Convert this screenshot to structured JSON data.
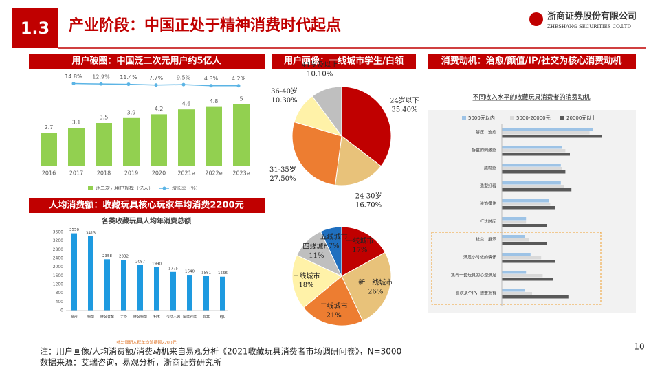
{
  "header": {
    "section": "1.3",
    "title": "产业阶段：中国正处于精神消费时代起点",
    "company": "浙商证券股份有限公司",
    "company_en": "ZHESHANG SECURITIES CO.LTD"
  },
  "panels": [
    "用户破圈：中国泛二次元用户约5亿人",
    "人均消费额：收藏玩具核心玩家年均消费2200元",
    "用户画像：一线城市学生/白领",
    "消费动机：治愈/颜值/IP/社交为核心消费动机"
  ],
  "chart_data": [
    {
      "type": "bar_line",
      "categories": [
        "2016",
        "2017",
        "2018",
        "2019",
        "2020",
        "2021e",
        "2022e",
        "2023e"
      ],
      "series": [
        {
          "name": "泛二次元用户规模（亿人）",
          "color": "#92d050",
          "values": [
            2.7,
            3.1,
            3.5,
            3.9,
            4.2,
            4.6,
            4.8,
            5.0
          ]
        },
        {
          "name": "增长率（%）",
          "color": "#5bb4e5",
          "values": [
            null,
            14.8,
            12.9,
            11.4,
            7.7,
            9.5,
            4.3,
            4.2
          ],
          "value_labels": [
            null,
            "14.8%",
            "12.9%",
            "11.4%",
            "7.7%",
            "9.5%",
            "4.3%",
            "4.2%"
          ]
        }
      ]
    },
    {
      "type": "bar",
      "title": "各类收藏玩具人均年消费总额",
      "categories": [
        "变形",
        "模型",
        "拼装合金",
        "手办",
        "拼装模型",
        "积木",
        "可动人偶",
        "扭蛋转蛋",
        "盲盒",
        "BJD"
      ],
      "values": [
        3550,
        3413,
        2358,
        2332,
        2087,
        1990,
        1775,
        1640,
        1581,
        1556
      ],
      "color": "#1e9ae0",
      "ylim": [
        0,
        3600
      ],
      "yticks": [
        0,
        400,
        800,
        1200,
        1600,
        2000,
        2400,
        2800,
        3200,
        3600
      ],
      "annotation": "参与调研人群年均消费额2200元"
    },
    {
      "type": "pie",
      "categories": [
        "24岁以下",
        "24-30岁",
        "31-35岁",
        "36-40岁",
        "41岁及以上"
      ],
      "values": [
        35.4,
        16.7,
        27.5,
        10.3,
        10.1
      ],
      "value_labels": [
        "35.40%",
        "16.70%",
        "27.50%",
        "10.30%",
        "10.10%"
      ],
      "colors": [
        "#c00000",
        "#e8c27a",
        "#ed7d31",
        "#fff2a8",
        "#bfbfbf"
      ]
    },
    {
      "type": "pie",
      "categories": [
        "一线城市",
        "新一线城市",
        "二线城市",
        "三线城市",
        "四线城市",
        "五线城市"
      ],
      "values": [
        17,
        26,
        21,
        18,
        11,
        7
      ],
      "value_labels": [
        "17%",
        "26%",
        "21%",
        "18%",
        "11%",
        "7%"
      ],
      "colors": [
        "#c00000",
        "#e8c27a",
        "#ed7d31",
        "#fff2a8",
        "#bfbfbf",
        "#1f6fbf"
      ]
    },
    {
      "type": "hbar",
      "title": "不同收入水平的收藏玩具消费者的消费动机",
      "categories": [
        "解压、治愈",
        "拆盒的刺激感",
        "成就感",
        "造型好看",
        "装饰摆件",
        "打法时间",
        "社交、展示",
        "满足小时候的情怀",
        "集齐一套玩具的心理满足",
        "喜欢某个IP，想要拥有"
      ],
      "series": [
        {
          "name": "5000元以内",
          "color": "#9dc3e6",
          "values": [
            60,
            40,
            39,
            39,
            31,
            16,
            15,
            19,
            16,
            15
          ]
        },
        {
          "name": "5000-20000元",
          "color": "#d9d9d9",
          "values": [
            58,
            42,
            40,
            41,
            32,
            16,
            18,
            26,
            27,
            20
          ]
        },
        {
          "name": "20000元以上",
          "color": "#595959",
          "values": [
            66,
            45,
            42,
            46,
            35,
            30,
            30,
            35,
            34,
            44
          ]
        }
      ]
    }
  ],
  "footer": {
    "note": "注：用户画像/人均消费额/消费动机来自易观分析《2021收藏玩具消费者市场调研问卷》，N=3000",
    "source": "数据来源：艾瑞咨询，易观分析，浙商证券研究所",
    "page": "10"
  }
}
